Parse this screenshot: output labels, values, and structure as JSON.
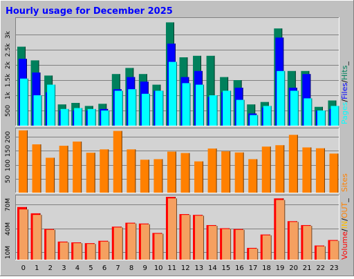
{
  "title": "Hourly usage for December 2025",
  "colors": {
    "frame": "#c0c0c0",
    "plot_bg": "#d3d3d3",
    "title": "#0000ff",
    "hits": "#00805c",
    "files": "#0000ff",
    "pages": "#00ffff",
    "sites": "#ff8000",
    "volume": "#ff0000",
    "volume_in": "#ffbf00",
    "volume_out": "#f5a060",
    "legend_sites": "#ff8000",
    "legend_in": "#ffbf00",
    "legend_out": "#ff8000"
  },
  "chart_data": [
    {
      "type": "bar",
      "name": "hits-files-pages",
      "categories": [
        "0",
        "1",
        "2",
        "3",
        "4",
        "5",
        "6",
        "7",
        "8",
        "9",
        "10",
        "11",
        "12",
        "13",
        "14",
        "15",
        "16",
        "17",
        "18",
        "19",
        "20",
        "21",
        "22",
        "23"
      ],
      "ylim": [
        0,
        3500
      ],
      "y_ticks": [
        500,
        1000,
        1500,
        2000,
        2500,
        3000
      ],
      "y_tick_labels": [
        "500",
        "1k",
        "1.5k",
        "2k",
        "2.5k",
        "3k"
      ],
      "legend": [
        "Pages",
        "/",
        "Files",
        "/",
        "Hits",
        "_"
      ],
      "series": [
        {
          "name": "Hits",
          "values": [
            2600,
            2150,
            1650,
            700,
            750,
            650,
            720,
            1700,
            1900,
            1700,
            1350,
            3400,
            2250,
            2300,
            2300,
            1600,
            1500,
            700,
            780,
            3200,
            1800,
            1800,
            620,
            830
          ]
        },
        {
          "name": "Files",
          "values": [
            2200,
            1750,
            1100,
            500,
            500,
            500,
            550,
            1200,
            1600,
            1450,
            1150,
            2700,
            1600,
            1800,
            950,
            1100,
            1250,
            400,
            600,
            2900,
            1250,
            1700,
            500,
            550
          ]
        },
        {
          "name": "Pages",
          "values": [
            1550,
            1000,
            1350,
            550,
            580,
            550,
            500,
            1150,
            1200,
            1050,
            1150,
            2100,
            1400,
            1350,
            1000,
            1150,
            850,
            350,
            650,
            1800,
            1150,
            900,
            500,
            650
          ]
        }
      ]
    },
    {
      "type": "bar",
      "name": "sites",
      "categories": [
        "0",
        "1",
        "2",
        "3",
        "4",
        "5",
        "6",
        "7",
        "8",
        "9",
        "10",
        "11",
        "12",
        "13",
        "14",
        "15",
        "16",
        "17",
        "18",
        "19",
        "20",
        "21",
        "22",
        "23"
      ],
      "ylim": [
        0,
        225
      ],
      "y_ticks": [
        50,
        100,
        150,
        200
      ],
      "y_tick_labels": [
        "50",
        "100",
        "150",
        "200"
      ],
      "legend": [
        "Sites"
      ],
      "series": [
        {
          "name": "Sites",
          "values": [
            223,
            173,
            125,
            168,
            183,
            143,
            155,
            221,
            155,
            118,
            120,
            147,
            142,
            112,
            158,
            148,
            144,
            120,
            165,
            170,
            207,
            162,
            159,
            140
          ]
        }
      ]
    },
    {
      "type": "bar",
      "name": "volume",
      "categories": [
        "0",
        "1",
        "2",
        "3",
        "4",
        "5",
        "6",
        "7",
        "8",
        "9",
        "10",
        "11",
        "12",
        "13",
        "14",
        "15",
        "16",
        "17",
        "18",
        "19",
        "20",
        "21",
        "22",
        "23"
      ],
      "ylim": [
        0,
        80
      ],
      "y_ticks": [
        10,
        40,
        70
      ],
      "y_tick_labels": [
        "10M",
        "40M",
        "70M"
      ],
      "legend": [
        "Volume",
        "/",
        "IN",
        "/",
        "OUT",
        "_"
      ],
      "series": [
        {
          "name": "Volume",
          "values": [
            67,
            59,
            39,
            23,
            22,
            21,
            24,
            42,
            47,
            46,
            34,
            80,
            58,
            57,
            44,
            40,
            39,
            15,
            32,
            78,
            49,
            44,
            18,
            25
          ]
        },
        {
          "name": "IN",
          "values": [
            0,
            0,
            0,
            0,
            0,
            0,
            0,
            0,
            0,
            0,
            0,
            0,
            0,
            0,
            0,
            0,
            0,
            0,
            0,
            0,
            0,
            0,
            0,
            0
          ]
        },
        {
          "name": "OUT",
          "values": [
            64,
            57,
            38,
            22,
            21,
            20,
            23,
            41,
            46,
            45,
            33,
            78,
            57,
            56,
            43,
            39,
            38,
            14,
            31,
            76,
            48,
            43,
            17,
            24
          ]
        }
      ]
    }
  ]
}
